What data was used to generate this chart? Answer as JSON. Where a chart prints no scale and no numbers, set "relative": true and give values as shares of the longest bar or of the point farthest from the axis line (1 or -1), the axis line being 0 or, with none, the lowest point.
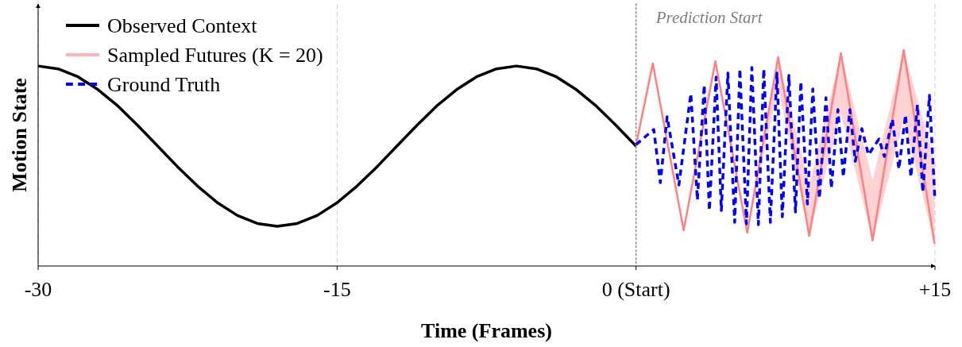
{
  "chart_data": {
    "type": "line",
    "relative": true,
    "xlabel": "Time (Frames)",
    "ylabel": "Motion State",
    "xlim": [
      -30,
      15
    ],
    "xticks": [
      -30,
      -15,
      {
        "value": 0,
        "label": "0 (Start)"
      },
      {
        "value": 15,
        "label": "+15"
      }
    ],
    "tick_labels": "x",
    "grid": "x",
    "legend": "top left",
    "ref_lines": [
      {
        "axis": "x",
        "value": 0,
        "label": "Prediction Start",
        "color": "#808080",
        "line_style": "dotted"
      }
    ],
    "series": [
      {
        "name": "Observed Context",
        "color": "#000000",
        "line_style": "solid",
        "x": [
          -30,
          -29,
          -28,
          -27,
          -26,
          -25,
          -24,
          -23,
          -22,
          -21,
          -20,
          -19,
          -18,
          -17,
          -16,
          -15,
          -14,
          -13,
          -12,
          -11,
          -10,
          -9,
          -8,
          -7,
          -6,
          -5,
          -4,
          -3,
          -2,
          -1,
          0
        ],
        "values": [
          0.926,
          0.913,
          0.876,
          0.817,
          0.741,
          0.651,
          0.555,
          0.459,
          0.37,
          0.293,
          0.234,
          0.197,
          0.184,
          0.197,
          0.234,
          0.293,
          0.37,
          0.459,
          0.555,
          0.651,
          0.741,
          0.817,
          0.876,
          0.913,
          0.926,
          0.913,
          0.876,
          0.817,
          0.741,
          0.651,
          0.555
        ]
      },
      {
        "name": "Sampled Futures (K = 20)",
        "color": "#ff8080",
        "line_style": "solid",
        "x": [
          0,
          0.84,
          2.39,
          3.98,
          5.58,
          7.13,
          8.69,
          10.28,
          11.87,
          13.43,
          14.98
        ],
        "values": [
          0.559,
          0.938,
          0.165,
          0.949,
          0.154,
          0.967,
          0.14,
          0.985,
          0.118,
          1,
          0.103
        ],
        "lower": [
          0.559,
          0.938,
          0.165,
          0.949,
          0.154,
          0.827,
          0.14,
          0.706,
          0.118,
          0.68,
          0.103
        ],
        "upper": [
          0.559,
          0.938,
          0.165,
          0.949,
          0.154,
          0.967,
          0.375,
          0.985,
          0.397,
          1,
          0.485
        ]
      },
      {
        "name": "Ground Truth",
        "color": "#0000ff",
        "line_style": "dashed",
        "x": [
          0,
          0.89,
          1.22,
          1.56,
          2.15,
          2.75,
          3.08,
          3.42,
          3.68,
          4.02,
          4.28,
          4.61,
          4.95,
          5.21,
          5.54,
          5.81,
          6.14,
          6.41,
          6.74,
          7.07,
          7.34,
          7.67,
          8,
          8.27,
          8.6,
          8.87,
          9.2,
          9.53,
          9.8,
          10.13,
          10.4,
          10.73,
          11,
          11.33,
          11.66,
          12.19,
          12.46,
          12.86,
          13.19,
          13.52,
          13.79,
          14.12,
          14.39,
          14.72,
          14.99
        ],
        "values": [
          0.562,
          0.632,
          0.386,
          0.691,
          0.375,
          0.798,
          0.305,
          0.838,
          0.257,
          0.875,
          0.257,
          0.893,
          0.202,
          0.912,
          0.195,
          0.919,
          0.191,
          0.912,
          0.202,
          0.893,
          0.228,
          0.882,
          0.25,
          0.853,
          0.287,
          0.82,
          0.313,
          0.779,
          0.36,
          0.724,
          0.412,
          0.724,
          0.485,
          0.636,
          0.515,
          0.588,
          0.507,
          0.68,
          0.449,
          0.699,
          0.412,
          0.746,
          0.342,
          0.79,
          0.32
        ]
      }
    ]
  }
}
